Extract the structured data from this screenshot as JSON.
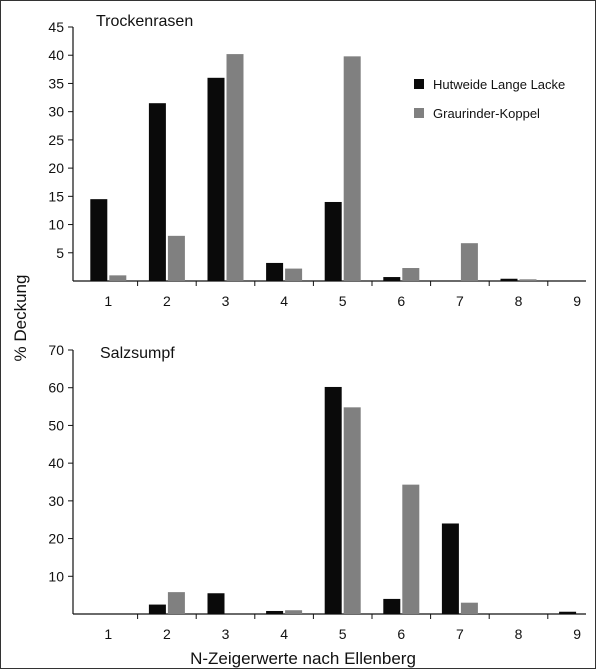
{
  "figure": {
    "ylabel": "% Deckung",
    "xlabel": "N-Zeigerwerte nach Ellenberg"
  },
  "legend": [
    {
      "name": "Hutweide Lange Lacke",
      "color": "#0a0a0a"
    },
    {
      "name": "Graurinder-Koppel",
      "color": "#808080"
    }
  ],
  "chart_data": [
    {
      "type": "bar",
      "title": "Trockenrasen",
      "categories": [
        "1",
        "2",
        "3",
        "4",
        "5",
        "6",
        "7",
        "8",
        "9"
      ],
      "ylim": [
        0,
        45
      ],
      "yticks": [
        5,
        10,
        15,
        20,
        25,
        30,
        35,
        40,
        45
      ],
      "series": [
        {
          "name": "Hutweide Lange Lacke",
          "values": [
            14.5,
            31.5,
            36,
            3.2,
            14,
            0.7,
            0,
            0.4,
            0
          ]
        },
        {
          "name": "Graurinder-Koppel",
          "values": [
            1,
            8,
            40.2,
            2.2,
            39.8,
            2.3,
            6.7,
            0.3,
            0
          ]
        }
      ],
      "legend_position": "top-right",
      "grid": false
    },
    {
      "type": "bar",
      "title": "Salzsumpf",
      "categories": [
        "1",
        "2",
        "3",
        "4",
        "5",
        "6",
        "7",
        "8",
        "9"
      ],
      "ylim": [
        0,
        70
      ],
      "yticks": [
        10,
        20,
        30,
        40,
        50,
        60,
        70
      ],
      "series": [
        {
          "name": "Hutweide Lange Lacke",
          "values": [
            0,
            2.5,
            5.5,
            0.8,
            60.2,
            4,
            24,
            0,
            0.6
          ]
        },
        {
          "name": "Graurinder-Koppel",
          "values": [
            0,
            5.8,
            0,
            1,
            54.8,
            34.3,
            3,
            0,
            0
          ]
        }
      ],
      "grid": false
    }
  ]
}
